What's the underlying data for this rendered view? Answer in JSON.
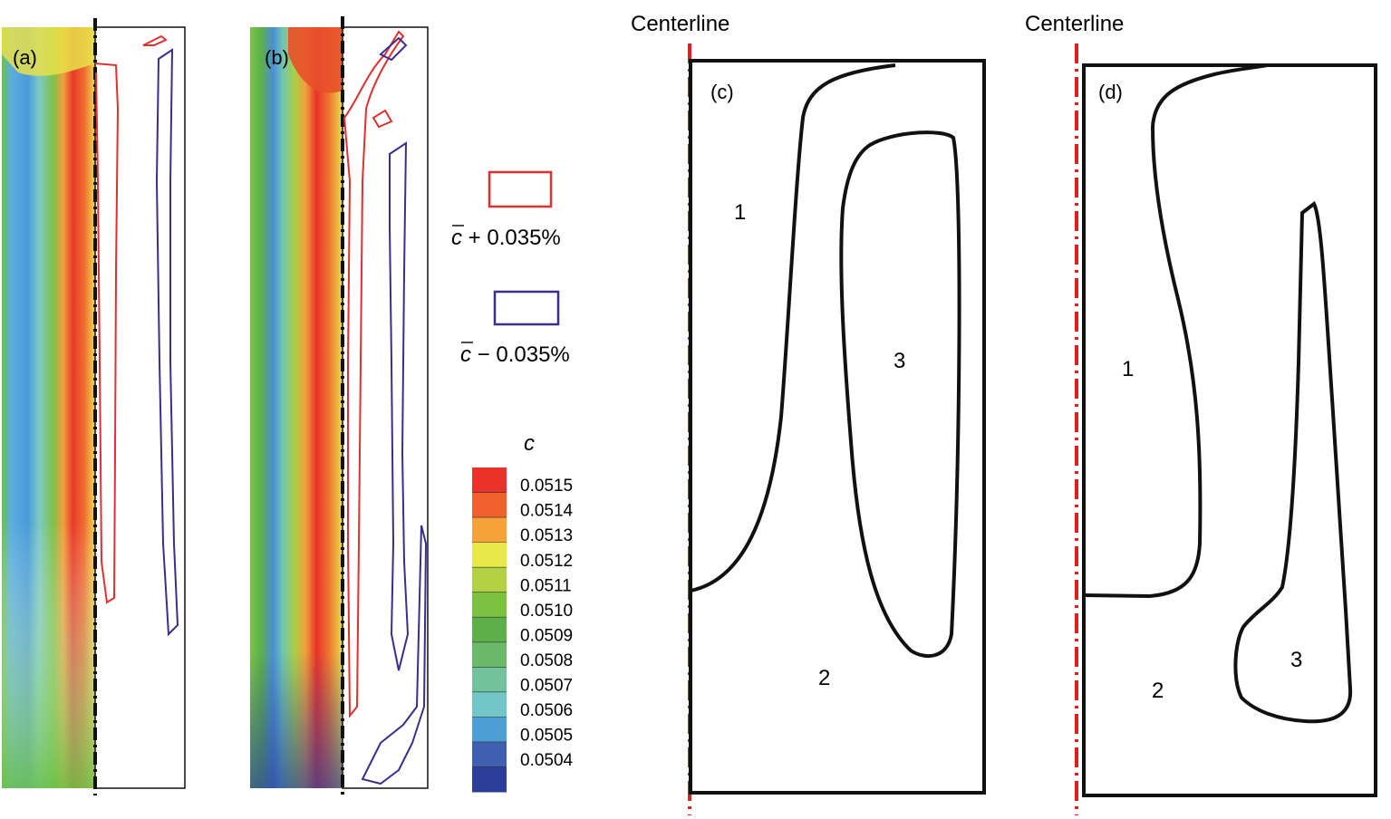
{
  "panels": {
    "a": {
      "label": "(a)"
    },
    "b": {
      "label": "(b)"
    },
    "c": {
      "label": "(c)",
      "centerline": "Centerline",
      "regions": [
        "1",
        "2",
        "3"
      ]
    },
    "d": {
      "label": "(d)",
      "centerline": "Centerline",
      "regions": [
        "1",
        "2",
        "3"
      ]
    }
  },
  "legend": {
    "plus_symbol": "c",
    "plus_label": " + 0.035%",
    "minus_symbol": "c",
    "minus_label": " − 0.035%",
    "plus_color": "#e03030",
    "minus_color": "#3a2f8a"
  },
  "colorbar": {
    "title": "c",
    "ticks": [
      "0.0515",
      "0.0514",
      "0.0513",
      "0.0512",
      "0.0511",
      "0.0510",
      "0.0509",
      "0.0508",
      "0.0507",
      "0.0506",
      "0.0505",
      "0.0504"
    ],
    "colors": [
      "#e8322a",
      "#f0612e",
      "#f5a23a",
      "#e8e84a",
      "#b3d243",
      "#7dc142",
      "#5db048",
      "#6ab86a",
      "#72c29c",
      "#72c6c6",
      "#4c9fd3",
      "#3f5fb0",
      "#2b3f9a"
    ]
  },
  "colors": {
    "centerline": "#e02020",
    "outline": "#111111"
  }
}
